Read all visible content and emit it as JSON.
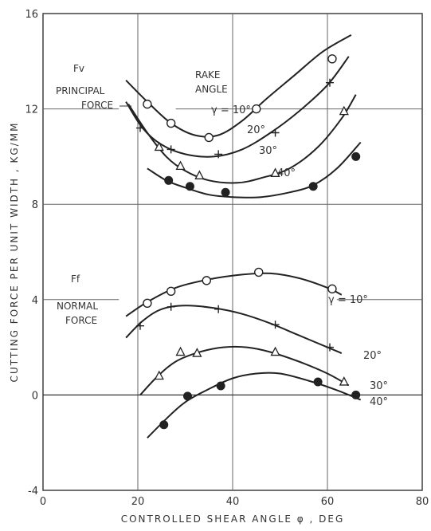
{
  "chart_data": {
    "type": "scatter",
    "xlabel": "CONTROLLED SHEAR ANGLE φ , DEG",
    "ylabel": "CUTTING FORCE PER UNIT WIDTH , KG/MM",
    "xlim": [
      0,
      80
    ],
    "ylim": [
      -4,
      16
    ],
    "xticks": [
      "0",
      "20",
      "40",
      "60",
      "80"
    ],
    "yticks": [
      "-4",
      "0",
      "4",
      "8",
      "12",
      "16"
    ],
    "grid": true,
    "annotations": {
      "fv": "Fv",
      "principal": "PRINCIPAL",
      "principal_force": "FORCE",
      "rake": "RAKE",
      "rake_angle": "ANGLE",
      "ff": "Ff",
      "normal": "NORMAL",
      "normal_force": "FORCE"
    },
    "series": [
      {
        "label": "γ = 10°",
        "group": "Fv",
        "marker": "circle-open",
        "points": [
          [
            22,
            12.2
          ],
          [
            27,
            11.4
          ],
          [
            35,
            10.8
          ],
          [
            45,
            12.0
          ],
          [
            61,
            14.1
          ]
        ],
        "curve": [
          [
            17.5,
            13.2
          ],
          [
            22,
            12.3
          ],
          [
            27,
            11.4
          ],
          [
            32,
            10.9
          ],
          [
            37,
            10.9
          ],
          [
            42,
            11.5
          ],
          [
            47,
            12.4
          ],
          [
            53,
            13.4
          ],
          [
            59,
            14.4
          ],
          [
            65,
            15.1
          ]
        ]
      },
      {
        "label": "20°",
        "group": "Fv",
        "marker": "plus",
        "points": [
          [
            20.5,
            11.2
          ],
          [
            27,
            10.3
          ],
          [
            37,
            10.1
          ],
          [
            49,
            11.0
          ],
          [
            60.5,
            13.1
          ]
        ],
        "curve": [
          [
            17.5,
            12.3
          ],
          [
            21,
            11.2
          ],
          [
            25,
            10.5
          ],
          [
            30,
            10.1
          ],
          [
            36,
            10.0
          ],
          [
            42,
            10.3
          ],
          [
            48,
            11.0
          ],
          [
            54,
            11.9
          ],
          [
            60,
            13.0
          ],
          [
            64.5,
            14.2
          ]
        ]
      },
      {
        "label": "30°",
        "group": "Fv",
        "marker": "triangle-open",
        "points": [
          [
            24.5,
            10.4
          ],
          [
            29,
            9.6
          ],
          [
            33,
            9.2
          ],
          [
            49,
            9.3
          ],
          [
            63.5,
            11.9
          ]
        ],
        "curve": [
          [
            18,
            12.2
          ],
          [
            22,
            11.0
          ],
          [
            26,
            10.0
          ],
          [
            30,
            9.4
          ],
          [
            35,
            9.0
          ],
          [
            41,
            8.9
          ],
          [
            46,
            9.1
          ],
          [
            52,
            9.5
          ],
          [
            58,
            10.4
          ],
          [
            63,
            11.6
          ],
          [
            66,
            12.6
          ]
        ]
      },
      {
        "label": "40°",
        "group": "Fv",
        "marker": "filled-circle",
        "points": [
          [
            26.5,
            9.0
          ],
          [
            31,
            8.75
          ],
          [
            38.5,
            8.5
          ],
          [
            57,
            8.75
          ],
          [
            66,
            10.0
          ]
        ],
        "curve": [
          [
            22,
            9.5
          ],
          [
            26,
            9.0
          ],
          [
            30,
            8.7
          ],
          [
            35,
            8.4
          ],
          [
            40,
            8.3
          ],
          [
            46,
            8.3
          ],
          [
            52,
            8.5
          ],
          [
            57,
            8.8
          ],
          [
            62,
            9.5
          ],
          [
            67,
            10.6
          ]
        ]
      },
      {
        "label": "γ = 10°",
        "group": "Ff",
        "marker": "circle-open",
        "points": [
          [
            22,
            3.85
          ],
          [
            27,
            4.35
          ],
          [
            34.5,
            4.8
          ],
          [
            45.5,
            5.15
          ],
          [
            61,
            4.45
          ]
        ],
        "curve": [
          [
            17.5,
            3.3
          ],
          [
            22,
            3.9
          ],
          [
            28,
            4.5
          ],
          [
            35,
            4.85
          ],
          [
            42,
            5.05
          ],
          [
            48,
            5.1
          ],
          [
            54,
            4.9
          ],
          [
            60,
            4.5
          ],
          [
            63,
            4.2
          ]
        ]
      },
      {
        "label": "20°",
        "group": "Ff",
        "marker": "plus",
        "points": [
          [
            20.5,
            2.9
          ],
          [
            27,
            3.7
          ],
          [
            37,
            3.6
          ],
          [
            49,
            2.95
          ],
          [
            60.5,
            2.0
          ]
        ],
        "curve": [
          [
            17.5,
            2.4
          ],
          [
            21,
            3.1
          ],
          [
            25,
            3.6
          ],
          [
            30,
            3.75
          ],
          [
            36,
            3.65
          ],
          [
            42,
            3.4
          ],
          [
            48,
            3.0
          ],
          [
            54,
            2.5
          ],
          [
            60,
            2.0
          ],
          [
            63,
            1.75
          ]
        ]
      },
      {
        "label": "30°",
        "group": "Ff",
        "marker": "triangle-open",
        "points": [
          [
            24.5,
            0.8
          ],
          [
            29,
            1.8
          ],
          [
            32.5,
            1.75
          ],
          [
            49,
            1.8
          ],
          [
            63.5,
            0.55
          ]
        ],
        "curve": [
          [
            20.5,
            0.0
          ],
          [
            24,
            0.75
          ],
          [
            28,
            1.4
          ],
          [
            33,
            1.8
          ],
          [
            38,
            2.0
          ],
          [
            43,
            2.0
          ],
          [
            48,
            1.8
          ],
          [
            54,
            1.4
          ],
          [
            60,
            0.9
          ],
          [
            64.5,
            0.4
          ]
        ]
      },
      {
        "label": "40°",
        "group": "Ff",
        "marker": "filled-circle",
        "points": [
          [
            25.5,
            -1.25
          ],
          [
            30.5,
            -0.05
          ],
          [
            37.5,
            0.38
          ],
          [
            58,
            0.55
          ],
          [
            66,
            0.0
          ]
        ],
        "curve": [
          [
            22,
            -1.8
          ],
          [
            26,
            -1.0
          ],
          [
            30,
            -0.3
          ],
          [
            35,
            0.25
          ],
          [
            40,
            0.7
          ],
          [
            45,
            0.9
          ],
          [
            50,
            0.9
          ],
          [
            56,
            0.6
          ],
          [
            62,
            0.2
          ],
          [
            67,
            -0.2
          ]
        ]
      }
    ]
  }
}
